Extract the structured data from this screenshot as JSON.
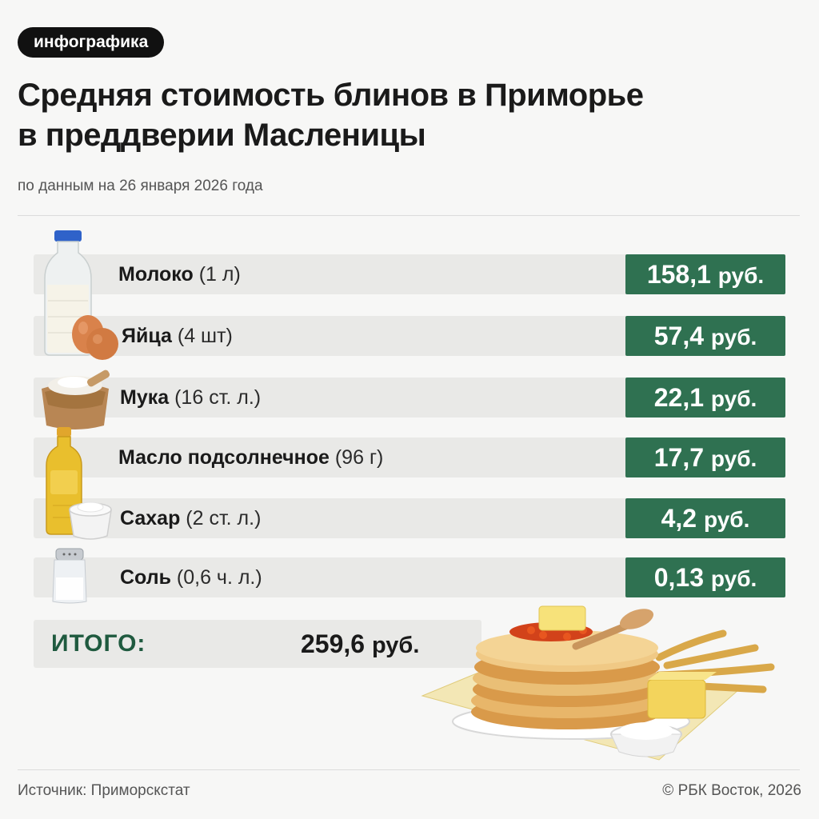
{
  "tag": "инфографика",
  "title": {
    "line1": "Средняя стоимость блинов в Приморье",
    "line2": "в преддверии Масленицы"
  },
  "subtitle": "по данным на 26 января 2026 года",
  "items": [
    {
      "name": "Молоко",
      "qty": "(1 л)",
      "price": "158,1",
      "unit": "руб.",
      "icon": "milk-bottle-icon"
    },
    {
      "name": "Яйца",
      "qty": "(4 шт)",
      "price": "57,4",
      "unit": "руб.",
      "icon": "eggs-icon"
    },
    {
      "name": "Мука",
      "qty": "(16 ст. л.)",
      "price": "22,1",
      "unit": "руб.",
      "icon": "flour-sack-icon"
    },
    {
      "name": "Масло подсолнечное",
      "qty": "(96 г)",
      "price": "17,7",
      "unit": "руб.",
      "icon": "oil-bottle-icon"
    },
    {
      "name": "Сахар",
      "qty": "(2 ст. л.)",
      "price": "4,2",
      "unit": "руб.",
      "icon": "sugar-bowl-icon"
    },
    {
      "name": "Соль",
      "qty": "(0,6 ч. л.)",
      "price": "0,13",
      "unit": "руб.",
      "icon": "salt-shaker-icon"
    }
  ],
  "total": {
    "label": "ИТОГО:",
    "value": "259,6",
    "unit": "руб."
  },
  "footer": {
    "source": "Источник: Приморскстат",
    "copyright": "© РБК Восток, 2026"
  },
  "colors": {
    "accent_green": "#2f7151",
    "total_label_green": "#1f5a3f",
    "row_bg": "#e9e9e7"
  }
}
